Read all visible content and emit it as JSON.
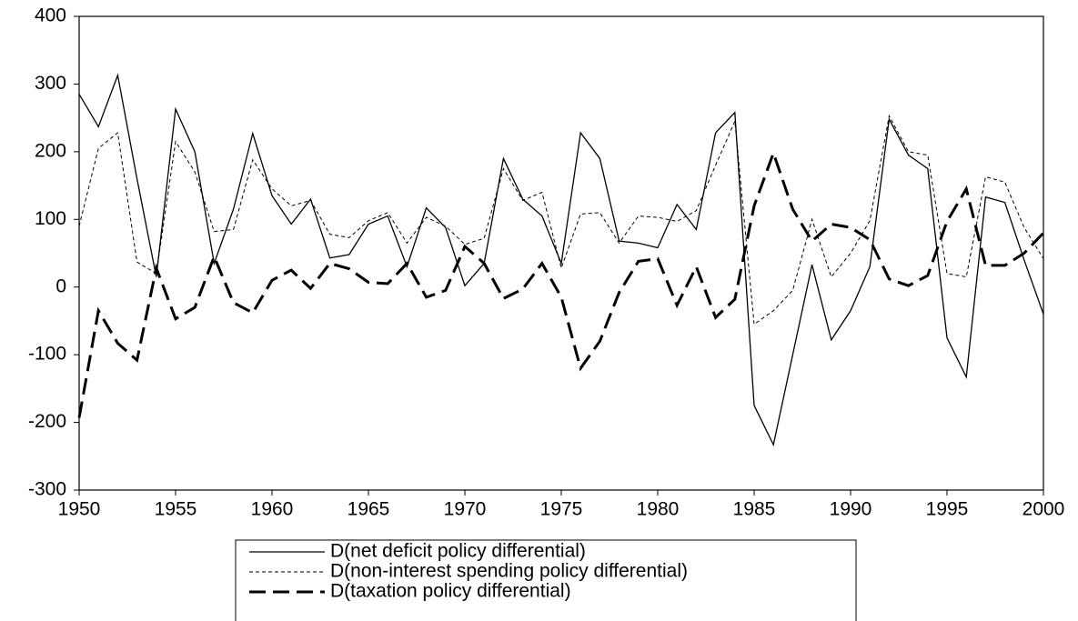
{
  "chart_data": {
    "type": "line",
    "x": [
      1950,
      1951,
      1952,
      1953,
      1954,
      1955,
      1956,
      1957,
      1958,
      1959,
      1960,
      1961,
      1962,
      1963,
      1964,
      1965,
      1966,
      1967,
      1968,
      1969,
      1970,
      1971,
      1972,
      1973,
      1974,
      1975,
      1976,
      1977,
      1978,
      1979,
      1980,
      1981,
      1982,
      1983,
      1984,
      1985,
      1986,
      1987,
      1988,
      1989,
      1990,
      1991,
      1992,
      1993,
      1994,
      1995,
      1996,
      1997,
      1998,
      1999,
      2000
    ],
    "series": [
      {
        "name": "D(net deficit policy differential)",
        "color": "#000000",
        "linestyle": "solid",
        "values": [
          285,
          237,
          313,
          160,
          15,
          263,
          200,
          35,
          115,
          227,
          135,
          93,
          130,
          43,
          48,
          93,
          105,
          30,
          117,
          88,
          2,
          35,
          190,
          130,
          105,
          35,
          228,
          190,
          68,
          65,
          58,
          122,
          85,
          228,
          258,
          -175,
          -233,
          -100,
          33,
          -78,
          -35,
          30,
          248,
          195,
          175,
          -75,
          -133,
          133,
          125,
          40,
          -40
        ]
      },
      {
        "name": "D(non-interest spending policy differential)",
        "color": "#000000",
        "linestyle": "dashed",
        "values": [
          90,
          205,
          228,
          37,
          20,
          215,
          170,
          82,
          85,
          188,
          145,
          120,
          128,
          78,
          73,
          98,
          110,
          65,
          103,
          90,
          63,
          72,
          175,
          128,
          140,
          28,
          108,
          110,
          65,
          105,
          103,
          97,
          113,
          180,
          245,
          -55,
          -35,
          -5,
          100,
          15,
          50,
          98,
          253,
          200,
          195,
          20,
          15,
          163,
          155,
          88,
          42
        ]
      },
      {
        "name": "D(taxation policy differential)",
        "color": "#000000",
        "linestyle": "long-dash",
        "values": [
          -193,
          -35,
          -83,
          -108,
          28,
          -47,
          -30,
          45,
          -23,
          -38,
          10,
          25,
          -2,
          35,
          27,
          7,
          5,
          35,
          -15,
          -5,
          60,
          35,
          -17,
          -3,
          35,
          -15,
          -120,
          -80,
          -8,
          38,
          42,
          -27,
          30,
          -45,
          -18,
          120,
          198,
          115,
          68,
          93,
          88,
          70,
          12,
          2,
          17,
          97,
          145,
          32,
          32,
          50,
          80
        ]
      }
    ],
    "xlim": [
      1950,
      2000
    ],
    "xticks": [
      1950,
      1955,
      1960,
      1965,
      1970,
      1975,
      1980,
      1985,
      1990,
      1995,
      2000
    ],
    "ylim": [
      -300,
      400
    ],
    "yticks": [
      -300,
      -200,
      -100,
      0,
      100,
      200,
      300,
      400
    ],
    "legend": "bottom"
  }
}
